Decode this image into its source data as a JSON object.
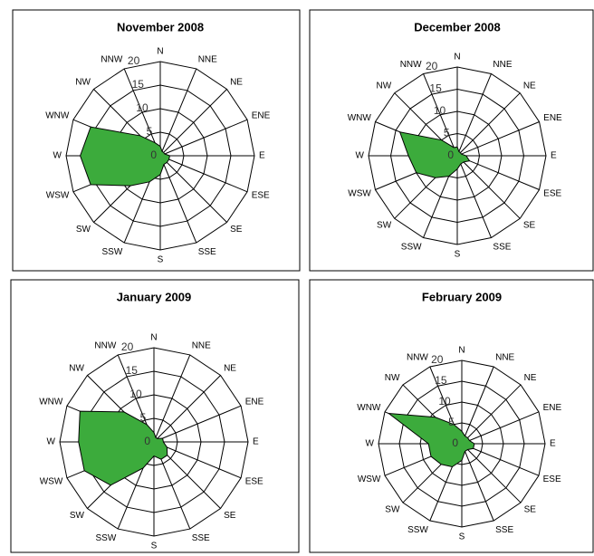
{
  "chart_data": [
    {
      "type": "radar",
      "title": "November 2008",
      "categories": [
        "N",
        "NNE",
        "NE",
        "ENE",
        "E",
        "ESE",
        "SE",
        "SSE",
        "S",
        "SSW",
        "SW",
        "WSW",
        "W",
        "WNW",
        "NW",
        "NNW"
      ],
      "values": [
        2,
        1,
        1,
        1,
        2,
        2,
        2,
        2,
        4,
        6,
        9,
        16,
        17,
        16,
        6,
        3
      ],
      "color": "#3cab3c",
      "rlim": [
        0,
        20
      ],
      "rticks": [
        0,
        5,
        10,
        15,
        20
      ]
    },
    {
      "type": "radar",
      "title": "December 2008",
      "categories": [
        "N",
        "NNE",
        "NE",
        "ENE",
        "E",
        "ESE",
        "SE",
        "SSE",
        "S",
        "SSW",
        "SW",
        "WSW",
        "W",
        "WNW",
        "NW",
        "NNW"
      ],
      "values": [
        2,
        1,
        1,
        1,
        2,
        3,
        2,
        2,
        3,
        5,
        7,
        10,
        11,
        14,
        5,
        2
      ],
      "color": "#3cab3c",
      "rlim": [
        0,
        20
      ],
      "rticks": [
        0,
        5,
        10,
        15,
        20
      ]
    },
    {
      "type": "radar",
      "title": "January 2009",
      "categories": [
        "N",
        "NNE",
        "NE",
        "ENE",
        "E",
        "ESE",
        "SE",
        "SSE",
        "S",
        "SSW",
        "SW",
        "WSW",
        "W",
        "WNW",
        "NW",
        "NNW"
      ],
      "values": [
        2,
        1,
        1,
        2,
        2,
        3,
        4,
        4,
        3,
        6,
        13,
        16,
        16,
        17,
        9,
        4
      ],
      "color": "#3cab3c",
      "rlim": [
        0,
        20
      ],
      "rticks": [
        0,
        5,
        10,
        15,
        20
      ]
    },
    {
      "type": "radar",
      "title": "February 2009",
      "categories": [
        "N",
        "NNE",
        "NE",
        "ENE",
        "E",
        "ESE",
        "SE",
        "SSE",
        "S",
        "SSW",
        "SW",
        "WSW",
        "W",
        "WNW",
        "NW",
        "NNW"
      ],
      "values": [
        3,
        2,
        2,
        2,
        3,
        3,
        2,
        2,
        4,
        6,
        7,
        8,
        8,
        19,
        9,
        5
      ],
      "color": "#3cab3c",
      "rlim": [
        0,
        20
      ],
      "rticks": [
        0,
        5,
        10,
        15,
        20
      ]
    }
  ]
}
